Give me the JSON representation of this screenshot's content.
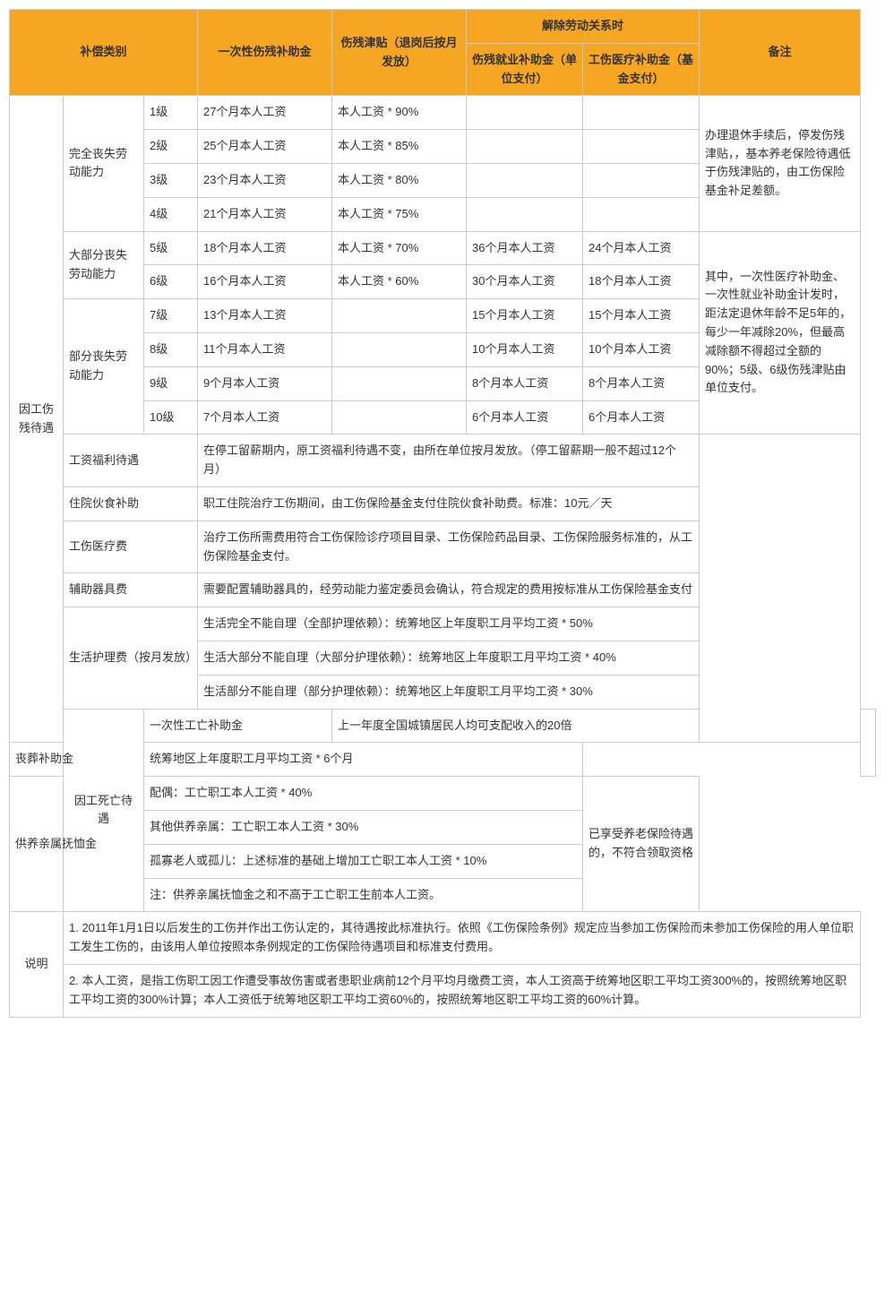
{
  "header": {
    "category": "补偿类别",
    "lump_sum": "一次性伤残补助金",
    "allowance": "伤残津贴（退岗后按月发放）",
    "termination": "解除劳动关系时",
    "employment_subsidy": "伤残就业补助金（单位支付）",
    "medical_subsidy": "工伤医疗补助金（基金支付）",
    "remarks": "备注"
  },
  "cat1": {
    "main": "因工伤残待遇",
    "g1": "完全丧失劳动能力",
    "g2": "大部分丧失劳动能力",
    "g3": "部分丧失劳动能力",
    "r1": {
      "lv": "1级",
      "ls": "27个月本人工资",
      "al": "本人工资 * 90%"
    },
    "r2": {
      "lv": "2级",
      "ls": "25个月本人工资",
      "al": "本人工资 * 85%"
    },
    "r3": {
      "lv": "3级",
      "ls": "23个月本人工资",
      "al": "本人工资 * 80%"
    },
    "r4": {
      "lv": "4级",
      "ls": "21个月本人工资",
      "al": "本人工资 * 75%"
    },
    "r5": {
      "lv": "5级",
      "ls": "18个月本人工资",
      "al": "本人工资 * 70%",
      "es": "36个月本人工资",
      "ms": "24个月本人工资"
    },
    "r6": {
      "lv": "6级",
      "ls": "16个月本人工资",
      "al": "本人工资 * 60%",
      "es": "30个月本人工资",
      "ms": "18个月本人工资"
    },
    "r7": {
      "lv": "7级",
      "ls": "13个月本人工资",
      "es": "15个月本人工资",
      "ms": "15个月本人工资"
    },
    "r8": {
      "lv": "8级",
      "ls": "11个月本人工资",
      "es": "10个月本人工资",
      "ms": "10个月本人工资"
    },
    "r9": {
      "lv": "9级",
      "ls": "9个月本人工资",
      "es": "8个月本人工资",
      "ms": "8个月本人工资"
    },
    "r10": {
      "lv": "10级",
      "ls": "7个月本人工资",
      "es": "6个月本人工资",
      "ms": "6个月本人工资"
    },
    "remark1": "办理退休手续后，停发伤残津贴，，基本养老保险待遇低于伤残津贴的，由工伤保险基金补足差额。",
    "remark2": "其中，一次性医疗补助金、一次性就业补助金计发时，距法定退休年龄不足5年的，每少一年减除20%，但最高减除额不得超过全额的90%；5级、6级伤残津贴由单位支付。",
    "welfare_label": "工资福利待遇",
    "welfare_text": "在停工留薪期内，原工资福利待遇不变，由所在单位按月发放。（停工留薪期一般不超过12个月）",
    "hospital_label": "住院伙食补助",
    "hospital_text": "职工住院治疗工伤期间，由工伤保险基金支付住院伙食补助费。标准：10元／天",
    "medical_label": "工伤医疗费",
    "medical_text": "治疗工伤所需费用符合工伤保险诊疗项目目录、工伤保险药品目录、工伤保险服务标准的，从工伤保险基金支付。",
    "device_label": "辅助器具费",
    "device_text": "需要配置辅助器具的，经劳动能力鉴定委员会确认，符合规定的费用按标准从工伤保险基金支付",
    "care_label": "生活护理费（按月发放）",
    "care_1": "生活完全不能自理（全部护理依赖）：统筹地区上年度职工月平均工资 * 50%",
    "care_2": "生活大部分不能自理（大部分护理依赖）：统筹地区上年度职工月平均工资 * 40%",
    "care_3": "生活部分不能自理（部分护理依赖）：统筹地区上年度职工月平均工资 * 30%"
  },
  "cat2": {
    "main": "因工死亡待遇",
    "death_lump_label": "一次性工亡补助金",
    "death_lump_text": "上一年度全国城镇居民人均可支配收入的20倍",
    "funeral_label": "丧葬补助金",
    "funeral_text": "统筹地区上年度职工月平均工资 * 6个月",
    "dependent_label": "供养亲属抚恤金",
    "dep_1": "配偶：工亡职工本人工资 * 40%",
    "dep_2": "其他供养亲属：工亡职工本人工资 * 30%",
    "dep_3": "孤寡老人或孤儿：上述标准的基础上增加工亡职工本人工资 * 10%",
    "dep_4": "注：供养亲属抚恤金之和不高于工亡职工生前本人工资。",
    "dep_remark": "已享受养老保险待遇的，不符合领取资格"
  },
  "notes": {
    "label": "说明",
    "n1": "1. 2011年1月1日以后发生的工伤并作出工伤认定的，其待遇按此标准执行。依照《工伤保险条例》规定应当参加工伤保险而未参加工伤保险的用人单位职工发生工伤的，由该用人单位按照本条例规定的工伤保险待遇项目和标准支付费用。",
    "n2": "2. 本人工资，是指工伤职工因工作遭受事故伤害或者患职业病前12个月平均月缴费工资，本人工资高于统筹地区职工平均工资300%的，按照统筹地区职工平均工资的300%计算；本人工资低于统筹地区职工平均工资60%的，按照统筹地区职工平均工资的60%计算。"
  },
  "colors": {
    "header_bg": "#f5a623",
    "border": "#cccccc",
    "text": "#333333"
  }
}
